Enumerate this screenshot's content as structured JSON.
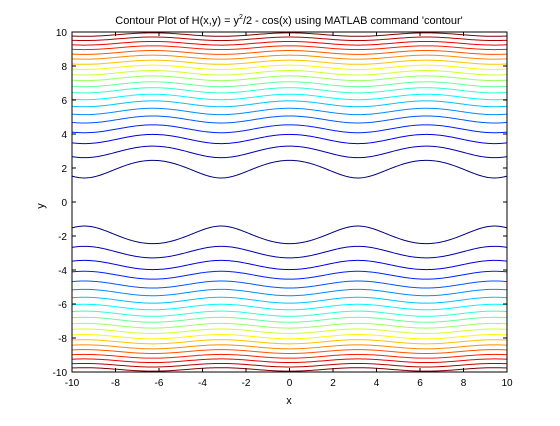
{
  "chart_data": {
    "type": "contour",
    "title_prefix": "Contour Plot of H(x,y) = y",
    "title_sup": "2",
    "title_suffix": "/2 - cos(x) using MATLAB command 'contour'",
    "xlabel": "x",
    "ylabel": "y",
    "xlim": [
      -10,
      10
    ],
    "ylim": [
      -10,
      10
    ],
    "xticks": [
      -10,
      -8,
      -6,
      -4,
      -2,
      0,
      2,
      4,
      6,
      8,
      10
    ],
    "yticks": [
      -10,
      -8,
      -6,
      -4,
      -2,
      0,
      2,
      4,
      6,
      8,
      10
    ],
    "xtick_labels": [
      "-10",
      "-8",
      "-6",
      "-4",
      "-2",
      "0",
      "2",
      "4",
      "6",
      "8",
      "10"
    ],
    "ytick_labels": [
      "-10",
      "-8",
      "-6",
      "-4",
      "-2",
      "0",
      "2",
      "4",
      "6",
      "8",
      "10"
    ],
    "function": "H(x,y) = y^2/2 - cos(x)",
    "levels": [
      2.0,
      4.4,
      6.9,
      9.3,
      11.8,
      14.2,
      16.7,
      19.1,
      21.6,
      24.0,
      26.5,
      28.9,
      31.4,
      33.8,
      36.3,
      38.7,
      41.2,
      43.6,
      46.1,
      48.5
    ],
    "colormap": "jet",
    "grid": false,
    "box": true
  }
}
